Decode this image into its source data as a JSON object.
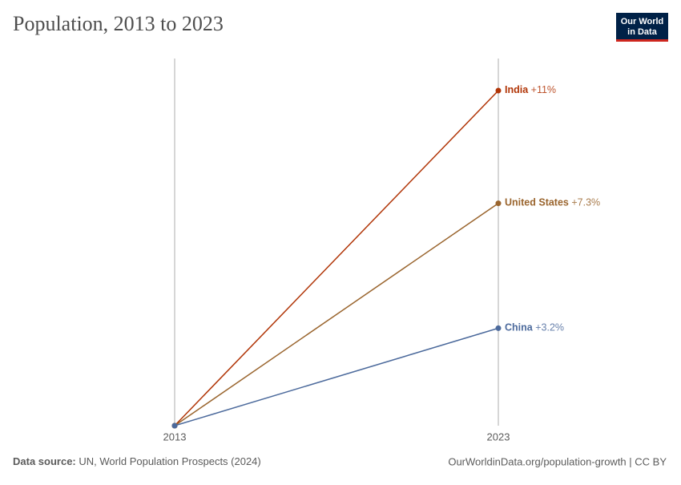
{
  "chart_data": {
    "type": "slope",
    "title": "Population, 2013 to 2023",
    "logo": [
      "Our World",
      "in Data"
    ],
    "source_label": "Data source:",
    "source": "UN, World Population Prospects (2024)",
    "url": "OurWorldinData.org/population-growth | CC BY",
    "x": [
      "2013",
      "2023"
    ],
    "series": [
      {
        "name": "India",
        "color": "#b13507",
        "values": [
          0,
          11
        ],
        "value_labels": [
          null,
          "+11%"
        ]
      },
      {
        "name": "United States",
        "color": "#9a652e",
        "values": [
          0,
          7.3
        ],
        "value_labels": [
          null,
          "+7.3%"
        ]
      },
      {
        "name": "China",
        "color": "#4c6a9c",
        "values": [
          0,
          3.2
        ],
        "value_labels": [
          null,
          "+3.2%"
        ]
      }
    ]
  }
}
